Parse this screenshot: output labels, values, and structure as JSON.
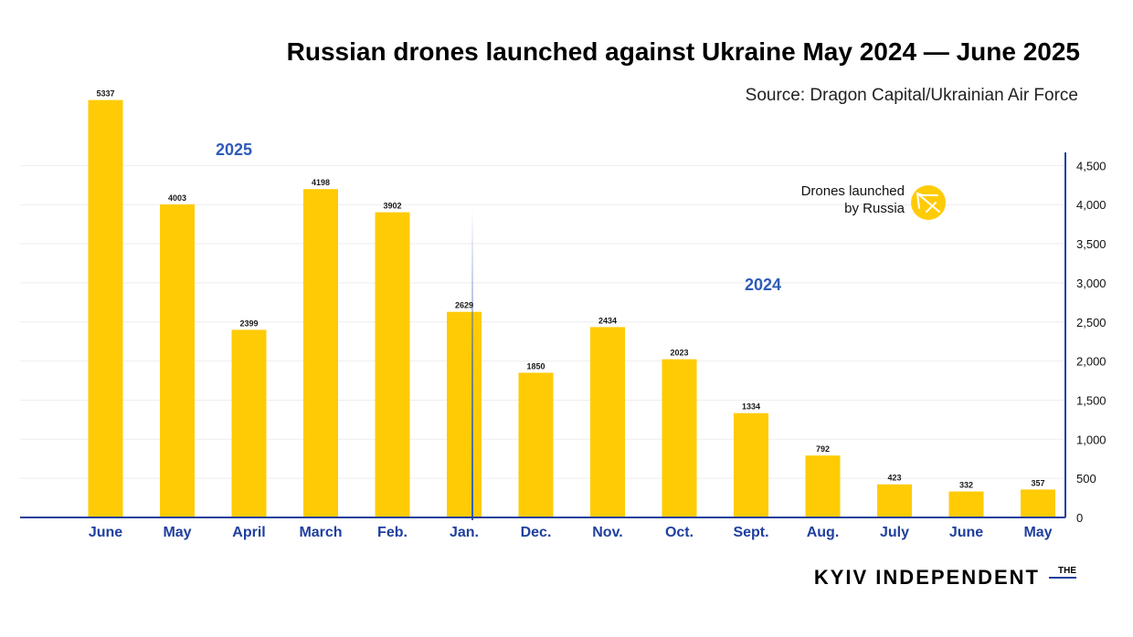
{
  "header": {
    "title": "Russian drones launched against Ukraine May 2024 — June 2025",
    "source": "Source: Dragon Capital/Ukrainian Air Force"
  },
  "legend": {
    "line1": "Drones launched",
    "line2": "by Russia",
    "icon": "drone-icon",
    "color": "#FFCB05"
  },
  "year_labels": {
    "y2024": "2024",
    "y2025": "2025"
  },
  "brand": {
    "the": "THE",
    "name": "KYIV INDEPENDENT"
  },
  "colors": {
    "bar": "#FFCB05",
    "month": "#1f3f9e",
    "year": "#2f5bb7",
    "axis": "#1f3f9e"
  },
  "chart_data": {
    "type": "bar",
    "categories": [
      "May",
      "June",
      "July",
      "Aug.",
      "Sept.",
      "Oct.",
      "Nov.",
      "Dec.",
      "Jan.",
      "Feb.",
      "March",
      "April",
      "May",
      "June"
    ],
    "values": [
      357,
      332,
      423,
      792,
      1334,
      2023,
      2434,
      1850,
      2629,
      3902,
      4198,
      2399,
      4003,
      5337
    ],
    "ylim": [
      0,
      4500
    ],
    "yticks": [
      0,
      500,
      1000,
      1500,
      2000,
      2500,
      3000,
      3500,
      4000,
      4500
    ],
    "ytick_labels": [
      "0",
      "500",
      "1,000",
      "1,500",
      "2,000",
      "2,500",
      "3,000",
      "3,500",
      "4,000",
      "4,500"
    ],
    "axis_position": "right",
    "orientation": "mirrored-horizontally",
    "grid": true
  }
}
